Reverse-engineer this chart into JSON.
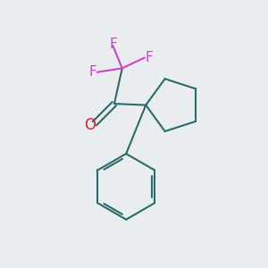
{
  "background_color": "#eaedf0",
  "bond_color": "#2a6b6b",
  "carbonyl_o_color": "#e8192c",
  "fluorine_color": "#cc44cc",
  "bond_width": 1.5,
  "font_size_F": 11,
  "font_size_O": 12,
  "xlim": [
    0,
    10
  ],
  "ylim": [
    0,
    10
  ]
}
